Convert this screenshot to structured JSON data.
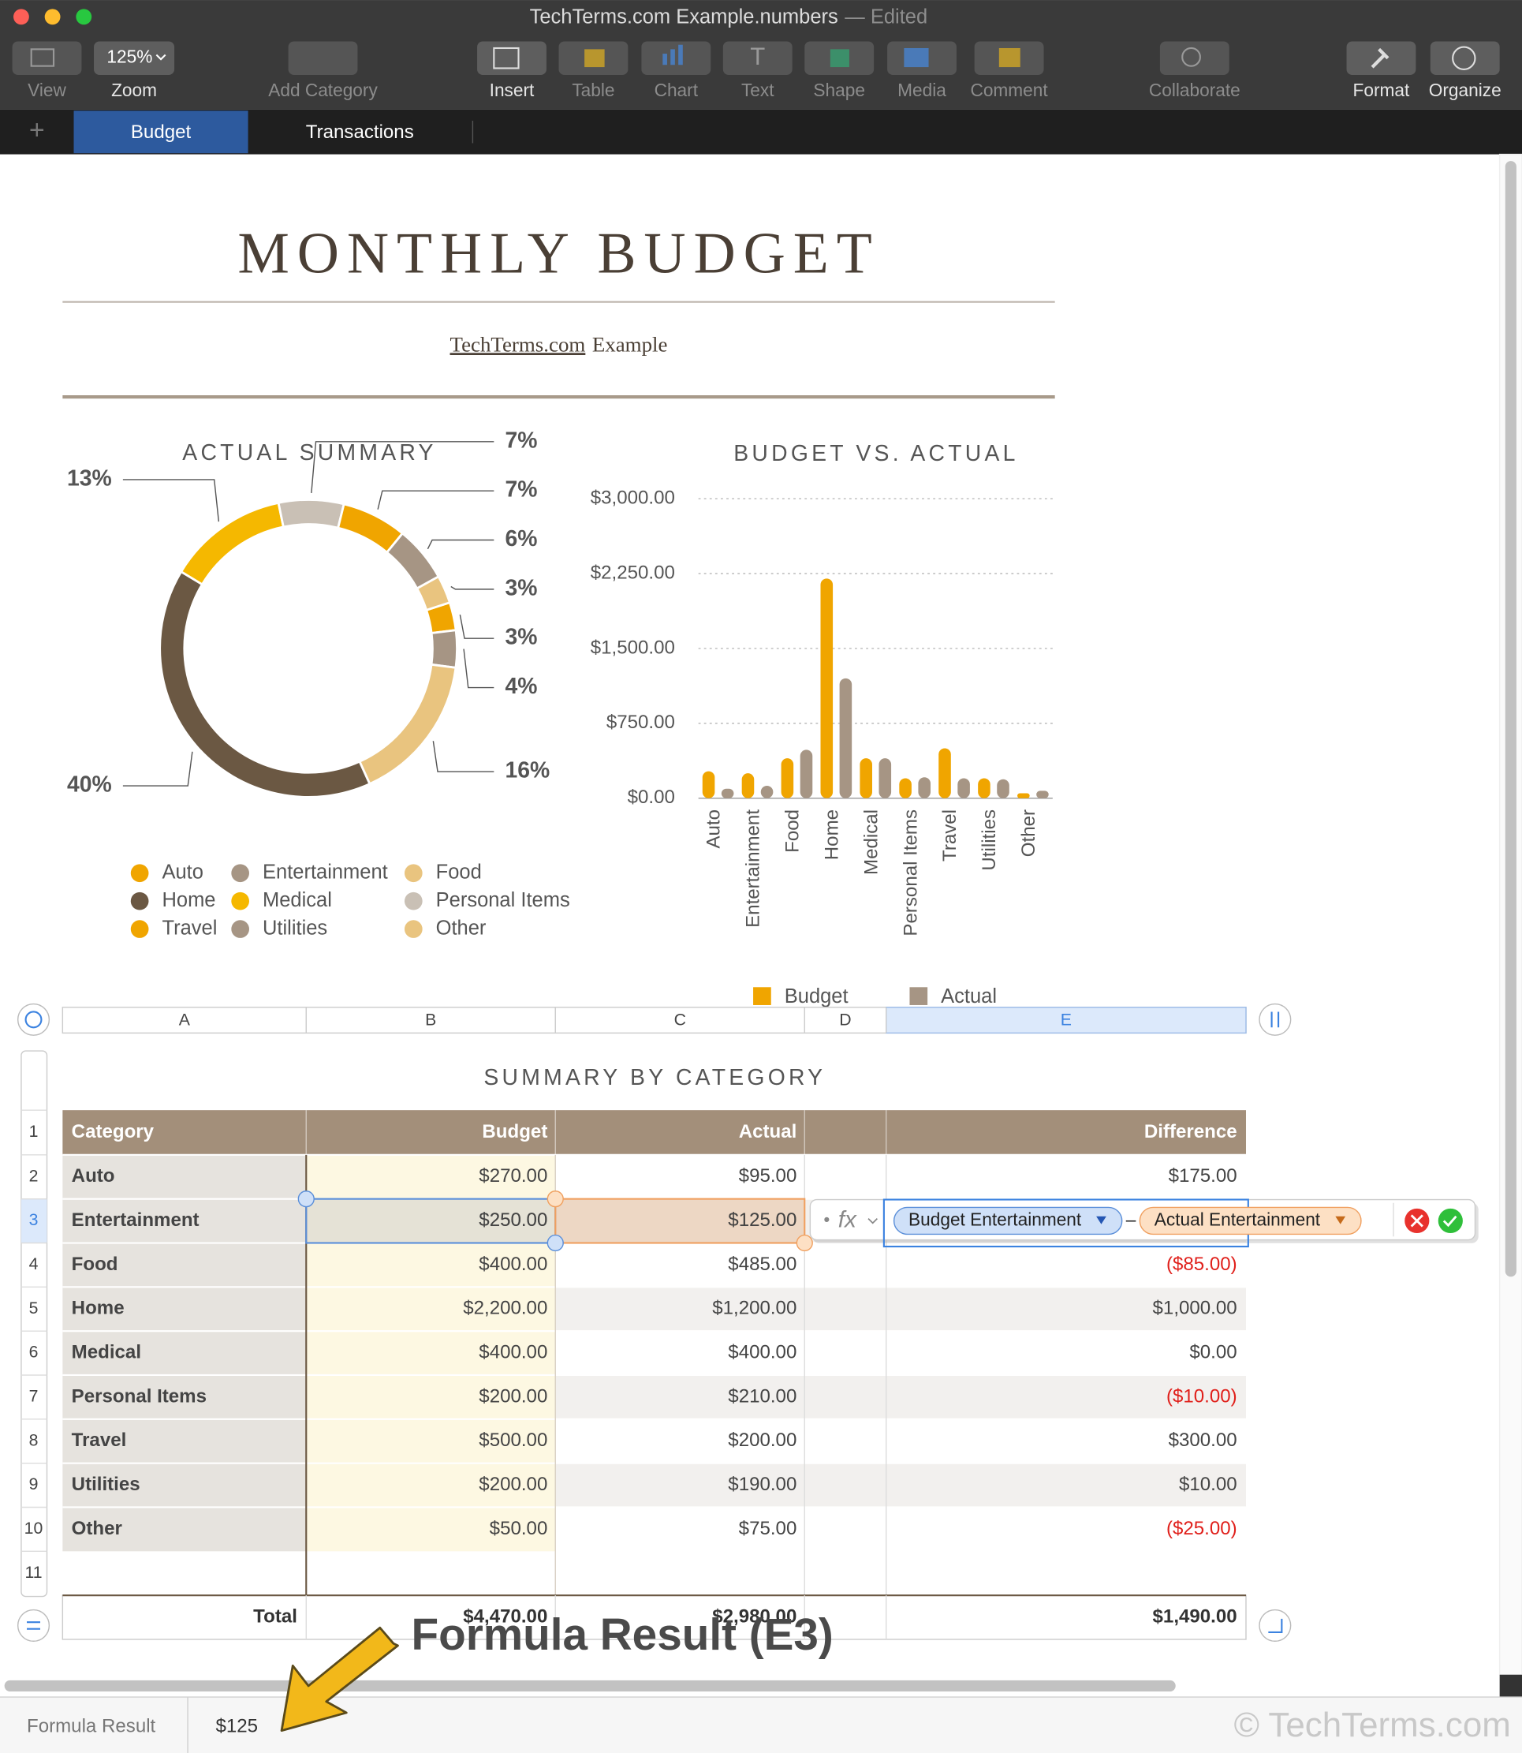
{
  "window": {
    "title": "TechTerms.com Example.numbers",
    "status": "— Edited"
  },
  "toolbar": {
    "zoom": "125%",
    "items": [
      {
        "label": "View",
        "enabled": false
      },
      {
        "label": "Zoom",
        "enabled": true
      },
      {
        "label": "Add Category",
        "enabled": false
      },
      {
        "label": "Insert",
        "enabled": true
      },
      {
        "label": "Table",
        "enabled": false
      },
      {
        "label": "Chart",
        "enabled": false
      },
      {
        "label": "Text",
        "enabled": false
      },
      {
        "label": "Shape",
        "enabled": false
      },
      {
        "label": "Media",
        "enabled": false
      },
      {
        "label": "Comment",
        "enabled": false
      },
      {
        "label": "Collaborate",
        "enabled": false
      },
      {
        "label": "Format",
        "enabled": true
      },
      {
        "label": "Organize",
        "enabled": true
      }
    ]
  },
  "tabs": [
    "Budget",
    "Transactions"
  ],
  "document": {
    "title": "MONTHLY BUDGET",
    "subtitle_link": "TechTerms.com",
    "subtitle_rest": "Example"
  },
  "chart_data": [
    {
      "type": "pie",
      "title": "ACTUAL SUMMARY",
      "categories": [
        "Auto",
        "Entertainment",
        "Food",
        "Home",
        "Medical",
        "Personal Items",
        "Travel",
        "Utilities",
        "Other"
      ],
      "values": [
        3,
        4,
        16,
        40,
        13,
        7,
        7,
        6,
        3
      ],
      "value_labels": [
        "3%",
        "4%",
        "16%",
        "40%",
        "13%",
        "7%",
        "7%",
        "6%",
        "3%"
      ],
      "colors": [
        "#f0a500",
        "#a69584",
        "#e9c47f",
        "#6b5843",
        "#f5b800",
        "#c9c0b5",
        "#f0a500",
        "#a69584",
        "#e9c47f"
      ],
      "donut": true,
      "legend": "bottom"
    },
    {
      "type": "bar",
      "title": "BUDGET VS. ACTUAL",
      "categories": [
        "Auto",
        "Entertainment",
        "Food",
        "Home",
        "Medical",
        "Personal Items",
        "Travel",
        "Utilities",
        "Other"
      ],
      "series": [
        {
          "name": "Budget",
          "color": "#f0a500",
          "values": [
            270,
            250,
            400,
            2200,
            400,
            200,
            500,
            200,
            50
          ]
        },
        {
          "name": "Actual",
          "color": "#a69584",
          "values": [
            95,
            125,
            485,
            1200,
            400,
            210,
            200,
            190,
            75
          ]
        }
      ],
      "ylim": [
        0,
        3000
      ],
      "yticks": [
        {
          "value": 0,
          "label": "$0.00"
        },
        {
          "value": 750,
          "label": "$750.00"
        },
        {
          "value": 1500,
          "label": "$1,500.00"
        },
        {
          "value": 2250,
          "label": "$2,250.00"
        },
        {
          "value": 3000,
          "label": "$3,000.00"
        }
      ],
      "grid": true,
      "legend": "bottom"
    }
  ],
  "table": {
    "title": "SUMMARY BY CATEGORY",
    "column_letters": [
      "A",
      "B",
      "C",
      "D",
      "E"
    ],
    "row_numbers": [
      1,
      2,
      3,
      4,
      5,
      6,
      7,
      8,
      9,
      10,
      11
    ],
    "header": {
      "category": "Category",
      "budget": "Budget",
      "actual": "Actual",
      "difference": "Difference"
    },
    "rows": [
      [
        "Auto",
        "$270.00",
        "$95.00",
        "$175.00"
      ],
      [
        "Entertainment",
        "$250.00",
        "$125.00"
      ],
      [
        "Food",
        "$400.00",
        "$485.00",
        "($85.00)"
      ],
      [
        "Home",
        "$2,200.00",
        "$1,200.00",
        "$1,000.00"
      ],
      [
        "Medical",
        "$400.00",
        "$400.00",
        "$0.00"
      ],
      [
        "Personal Items",
        "$200.00",
        "$210.00",
        "($10.00)"
      ],
      [
        "Travel",
        "$500.00",
        "$200.00",
        "$300.00"
      ],
      [
        "Utilities",
        "$200.00",
        "$190.00",
        "$10.00"
      ],
      [
        "Other",
        "$50.00",
        "$75.00",
        "($25.00)"
      ]
    ],
    "total": [
      "Total",
      "$4,470.00",
      "$2,980.00",
      "$1,490.00"
    ],
    "negative_color": "#e0201b"
  },
  "formula": {
    "tokens": [
      "Budget Entertainment",
      "–",
      "Actual Entertainment"
    ],
    "fx": "fx"
  },
  "footer": {
    "label": "Formula Result",
    "value": "$125"
  },
  "annotation": "Formula Result (E3)",
  "watermark": "© TechTerms.com"
}
